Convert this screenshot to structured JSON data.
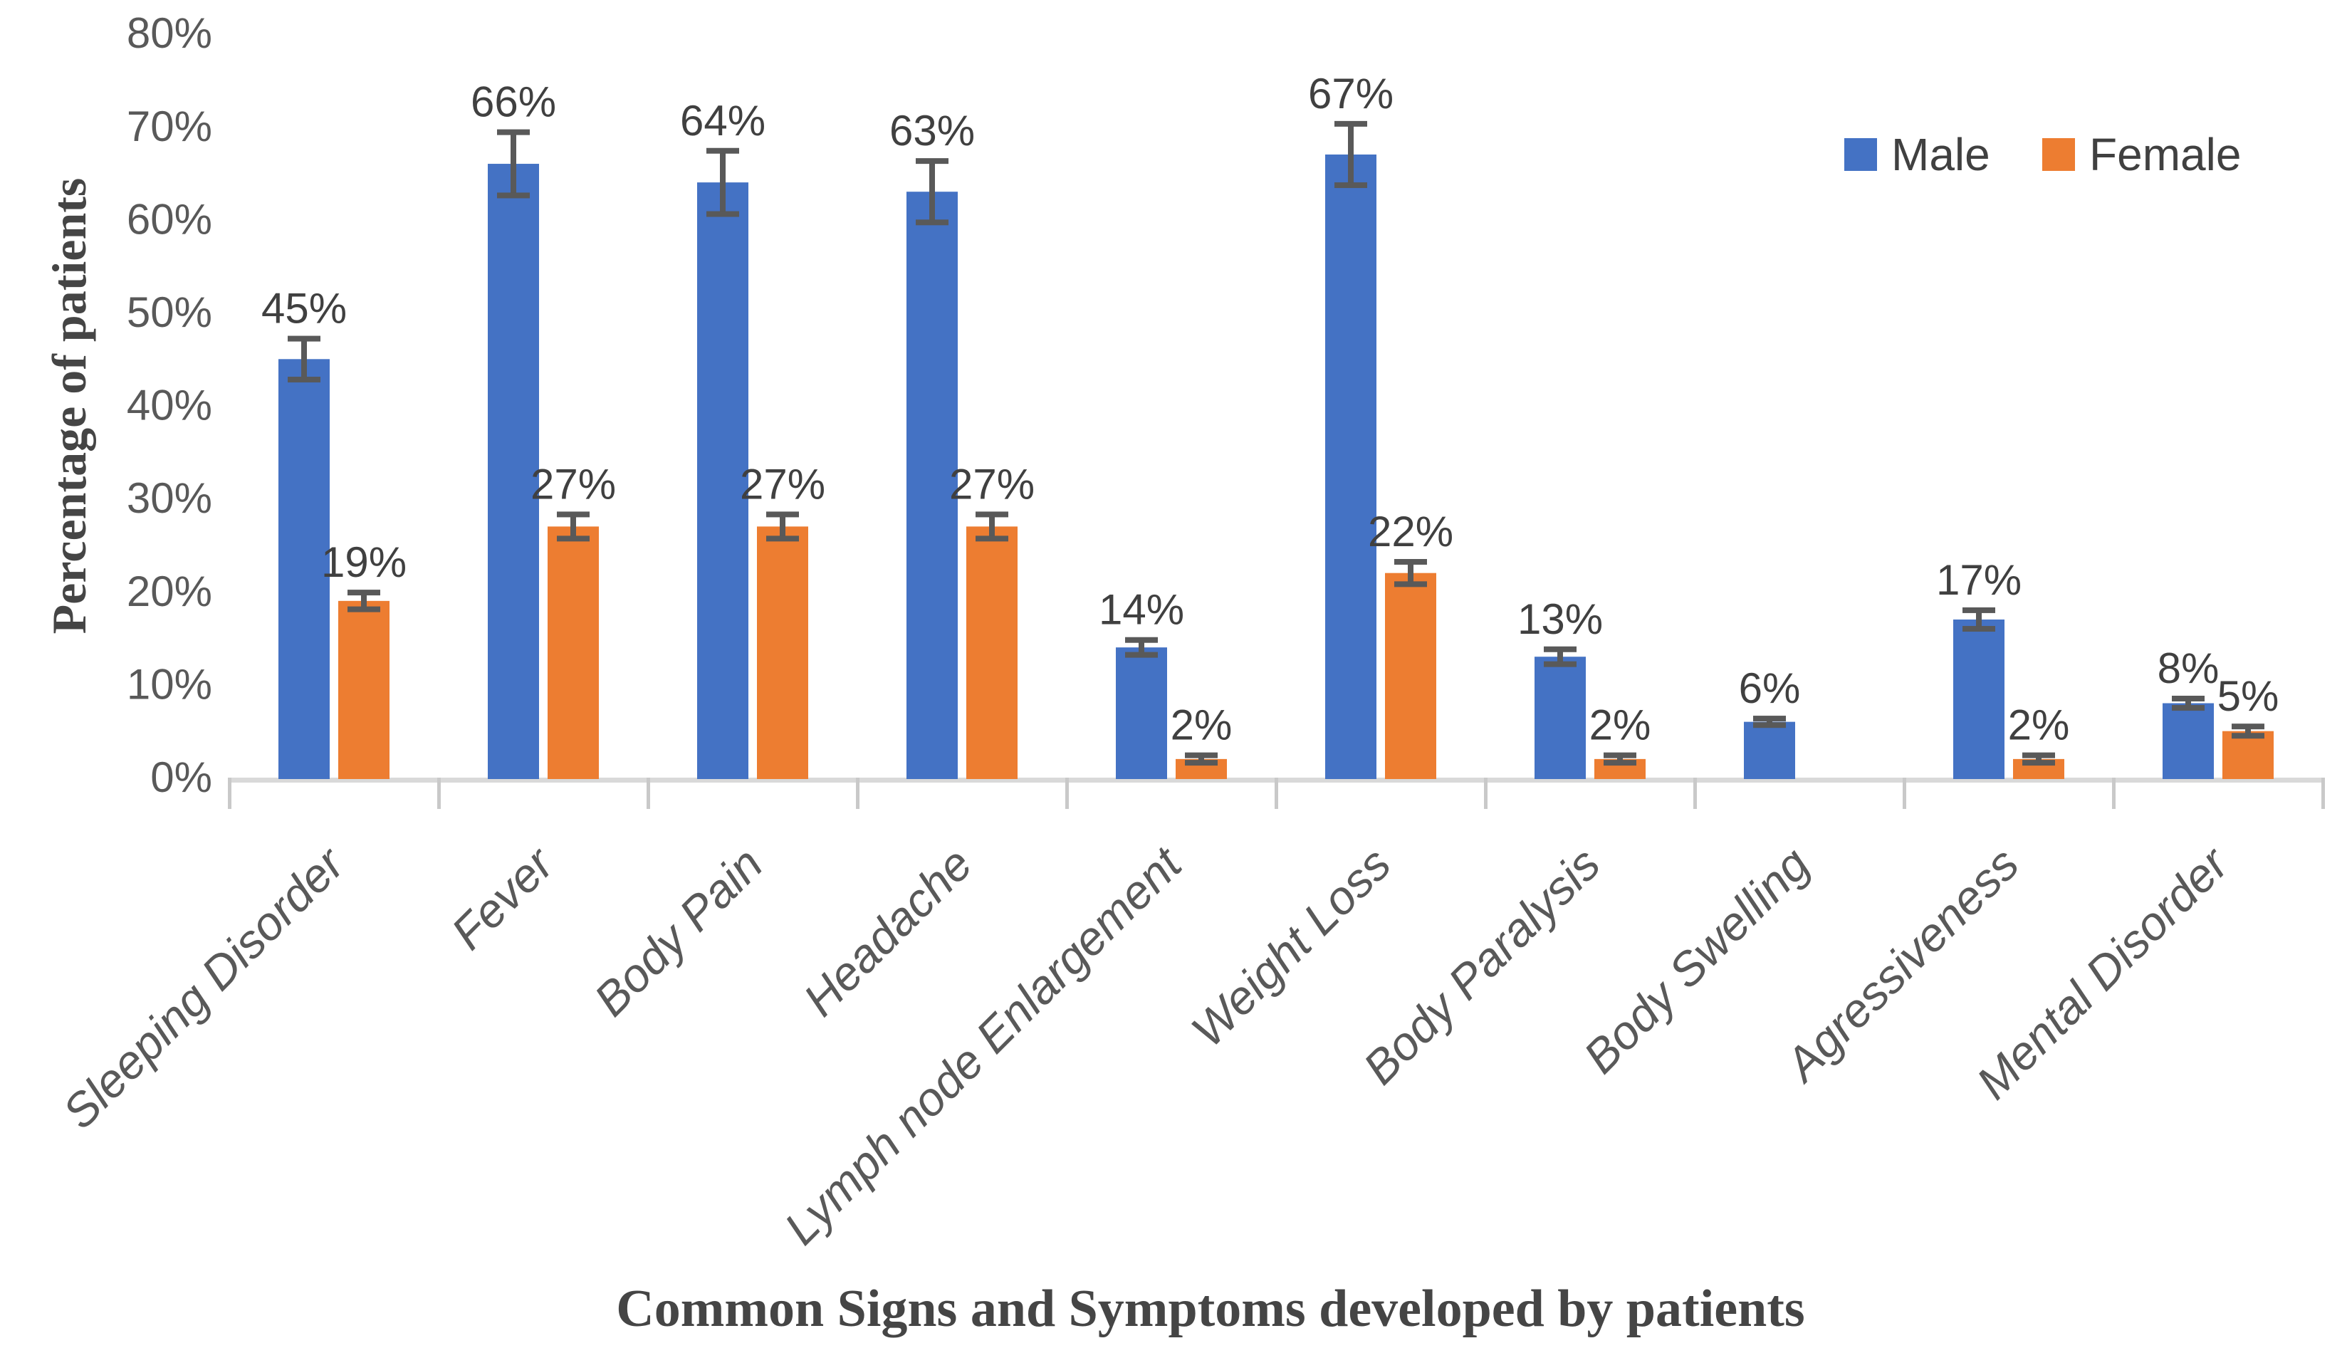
{
  "chart_data": {
    "type": "bar",
    "title": "",
    "categories": [
      "Sleeping Disorder",
      "Fever",
      "Body Pain",
      "Headache",
      "Lymph node Enlargement",
      "Weight Loss",
      "Body Paralysis",
      "Body Swelling",
      "Agressiveness",
      "Mental Disorder"
    ],
    "series": [
      {
        "name": "Male",
        "color": "#4472C4",
        "values": [
          45,
          66,
          64,
          63,
          14,
          67,
          13,
          6,
          17,
          8
        ],
        "labels": [
          "45%",
          "66%",
          "64%",
          "63%",
          "14%",
          "67%",
          "13%",
          "6%",
          "17%",
          "8%"
        ],
        "errors": [
          2.2,
          3.4,
          3.4,
          3.3,
          0.8,
          3.3,
          0.8,
          0.35,
          1.0,
          0.5
        ]
      },
      {
        "name": "Female",
        "color": "#ED7D31",
        "values": [
          19,
          27,
          27,
          27,
          2,
          22,
          2,
          null,
          2,
          5
        ],
        "labels": [
          "19%",
          "27%",
          "27%",
          "27%",
          "2%",
          "22%",
          "2%",
          "",
          "2%",
          "5%"
        ],
        "errors": [
          0.9,
          1.3,
          1.3,
          1.3,
          0.4,
          1.2,
          0.4,
          null,
          0.4,
          0.5
        ]
      }
    ],
    "xlabel": "Common Signs and Symptoms developed by patients",
    "ylabel": "Percentage of patients",
    "ylim": [
      0,
      80
    ],
    "ytick_values": [
      0,
      10,
      20,
      30,
      40,
      50,
      60,
      70,
      80
    ],
    "ytick_labels": [
      "0%",
      "10%",
      "20%",
      "30%",
      "40%",
      "50%",
      "60%",
      "70%",
      "80%"
    ],
    "grid": false,
    "legend_position": "top-right",
    "error_bars": true
  },
  "styles": {
    "male_color": "#4472C4",
    "female_color": "#ED7D31",
    "error_bar_color": "#595959",
    "axis_line_color": "#D9D9D9",
    "tick_mark_color": "#C9C9C9",
    "tick_label_color": "#595959",
    "category_label_color": "#595959",
    "value_label_color": "#404040",
    "axis_title_color": "#454545",
    "background": "#FFFFFF"
  }
}
